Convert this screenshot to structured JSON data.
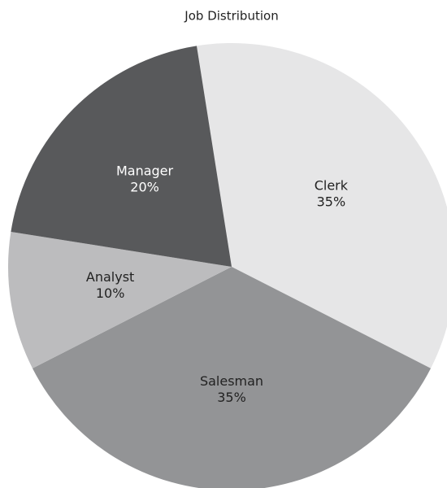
{
  "chart_data": {
    "type": "pie",
    "title": "Job Distribution",
    "categories": [
      "Clerk",
      "Salesman",
      "Analyst",
      "Manager"
    ],
    "values": [
      35,
      35,
      10,
      20
    ],
    "value_labels": [
      "35%",
      "35%",
      "10%",
      "20%"
    ],
    "colors": [
      "#e6e6e7",
      "#939496",
      "#bcbcbe",
      "#58595b"
    ]
  }
}
